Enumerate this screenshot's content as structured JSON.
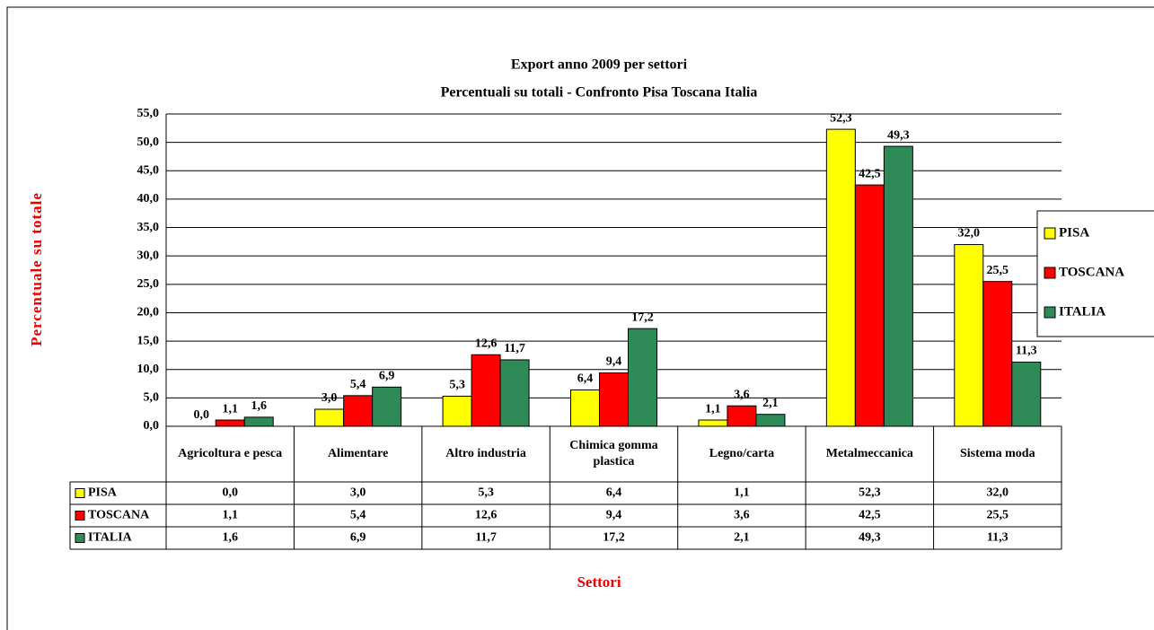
{
  "chart_data": {
    "type": "bar",
    "title": "Export anno 2009 per settori",
    "subtitle": "Percentuali su totali - Confronto Pisa  Toscana Italia",
    "y_label": "Percentuale su totale",
    "x_label": "Settori",
    "categories": [
      "Agricoltura e pesca",
      "Alimentare",
      "Altro industria",
      "Chimica gomma plastica",
      "Legno/carta",
      "Metalmeccanica",
      "Sistema moda"
    ],
    "series": [
      {
        "name": "PISA",
        "color": "#ffff00",
        "values": [
          0.0,
          3.0,
          5.3,
          6.4,
          1.1,
          52.3,
          32.0
        ],
        "value_labels": [
          "0,0",
          "3,0",
          "5,3",
          "6,4",
          "1,1",
          "52,3",
          "32,0"
        ]
      },
      {
        "name": "TOSCANA",
        "color": "#ff0000",
        "values": [
          1.1,
          5.4,
          12.6,
          9.4,
          3.6,
          42.5,
          25.5
        ],
        "value_labels": [
          "1,1",
          "5,4",
          "12,6",
          "9,4",
          "3,6",
          "42,5",
          "25,5"
        ]
      },
      {
        "name": "ITALIA",
        "color": "#2e8b57",
        "values": [
          1.6,
          6.9,
          11.7,
          17.2,
          2.1,
          49.3,
          11.3
        ],
        "value_labels": [
          "1,6",
          "6,9",
          "11,7",
          "17,2",
          "2,1",
          "49,3",
          "11,3"
        ]
      }
    ],
    "ylim": [
      0,
      55
    ],
    "yticks": [
      {
        "value": 0,
        "label": "0,0"
      },
      {
        "value": 5,
        "label": "5,0"
      },
      {
        "value": 10,
        "label": "10,0"
      },
      {
        "value": 15,
        "label": "15,0"
      },
      {
        "value": 20,
        "label": "20,0"
      },
      {
        "value": 25,
        "label": "25,0"
      },
      {
        "value": 30,
        "label": "30,0"
      },
      {
        "value": 35,
        "label": "35,0"
      },
      {
        "value": 40,
        "label": "40,0"
      },
      {
        "value": 45,
        "label": "45,0"
      },
      {
        "value": 50,
        "label": "50,0"
      },
      {
        "value": 55,
        "label": "55,0"
      }
    ],
    "grid": true,
    "legend": "right",
    "data_table": true
  }
}
